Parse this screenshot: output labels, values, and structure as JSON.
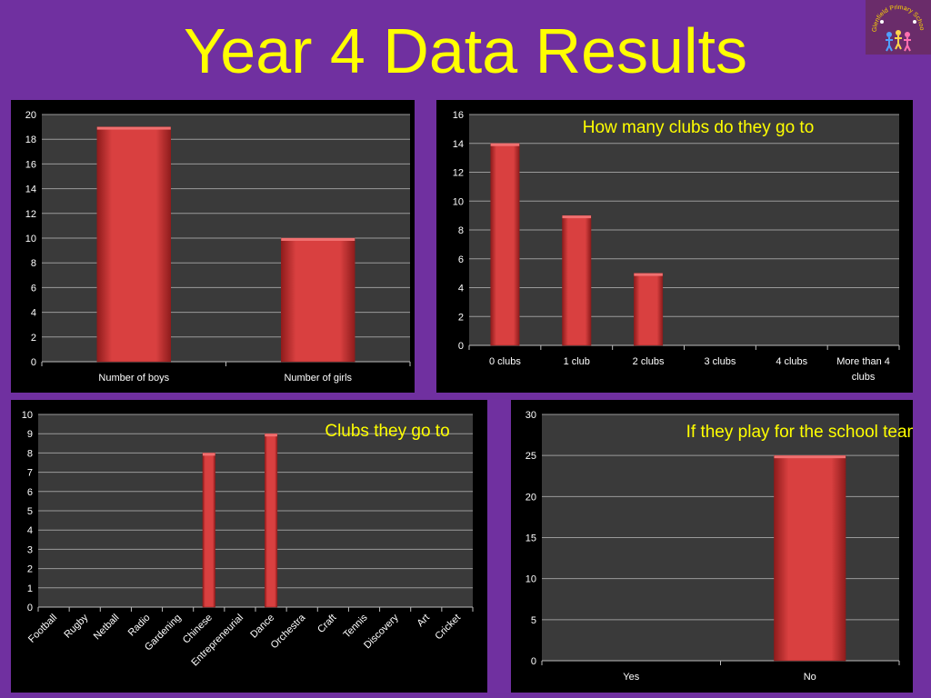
{
  "slide": {
    "title": "Year 4 Data Results",
    "logo_text": "Glenfield Primary School"
  },
  "colors": {
    "background": "#7030a0",
    "title": "#ffff00",
    "bar_fill": "#d94040",
    "bar_edge": "#8f1c1c",
    "plot_area": "#3a3a3a",
    "grid": "#9a9a9a"
  },
  "chart_data": [
    {
      "type": "bar",
      "title": "",
      "categories": [
        "Number of boys",
        "Number of girls"
      ],
      "values": [
        19,
        10
      ],
      "ylim": [
        0,
        20
      ],
      "yticks": [
        0,
        2,
        4,
        6,
        8,
        10,
        12,
        14,
        16,
        18,
        20
      ],
      "grid": true,
      "legend": "none"
    },
    {
      "type": "bar",
      "title": "How many clubs do they go to",
      "categories": [
        "0 clubs",
        "1 club",
        "2 clubs",
        "3 clubs",
        "4 clubs",
        "More than 4 clubs"
      ],
      "values": [
        14,
        9,
        5,
        0,
        0,
        0
      ],
      "ylim": [
        0,
        16
      ],
      "yticks": [
        0,
        2,
        4,
        6,
        8,
        10,
        12,
        14,
        16
      ],
      "grid": true,
      "legend": "none"
    },
    {
      "type": "bar",
      "title": "Clubs they go to",
      "categories": [
        "Football",
        "Rugby",
        "Netball",
        "Radio",
        "Gardening",
        "Chinese",
        "Entrepreneurial",
        "Dance",
        "Orchestra",
        "Craft",
        "Tennis",
        "Discovery",
        "Art",
        "Cricket"
      ],
      "values": [
        0,
        0,
        0,
        0,
        0,
        8,
        0,
        9,
        0,
        0,
        0,
        0,
        0,
        0
      ],
      "ylim": [
        0,
        10
      ],
      "yticks": [
        0,
        1,
        2,
        3,
        4,
        5,
        6,
        7,
        8,
        9,
        10
      ],
      "grid": true,
      "legend": "none"
    },
    {
      "type": "bar",
      "title": "If they play  for the school team",
      "categories": [
        "Yes",
        "No"
      ],
      "values": [
        0,
        25
      ],
      "ylim": [
        0,
        30
      ],
      "yticks": [
        0,
        5,
        10,
        15,
        20,
        25,
        30
      ],
      "grid": true,
      "legend": "none"
    }
  ]
}
